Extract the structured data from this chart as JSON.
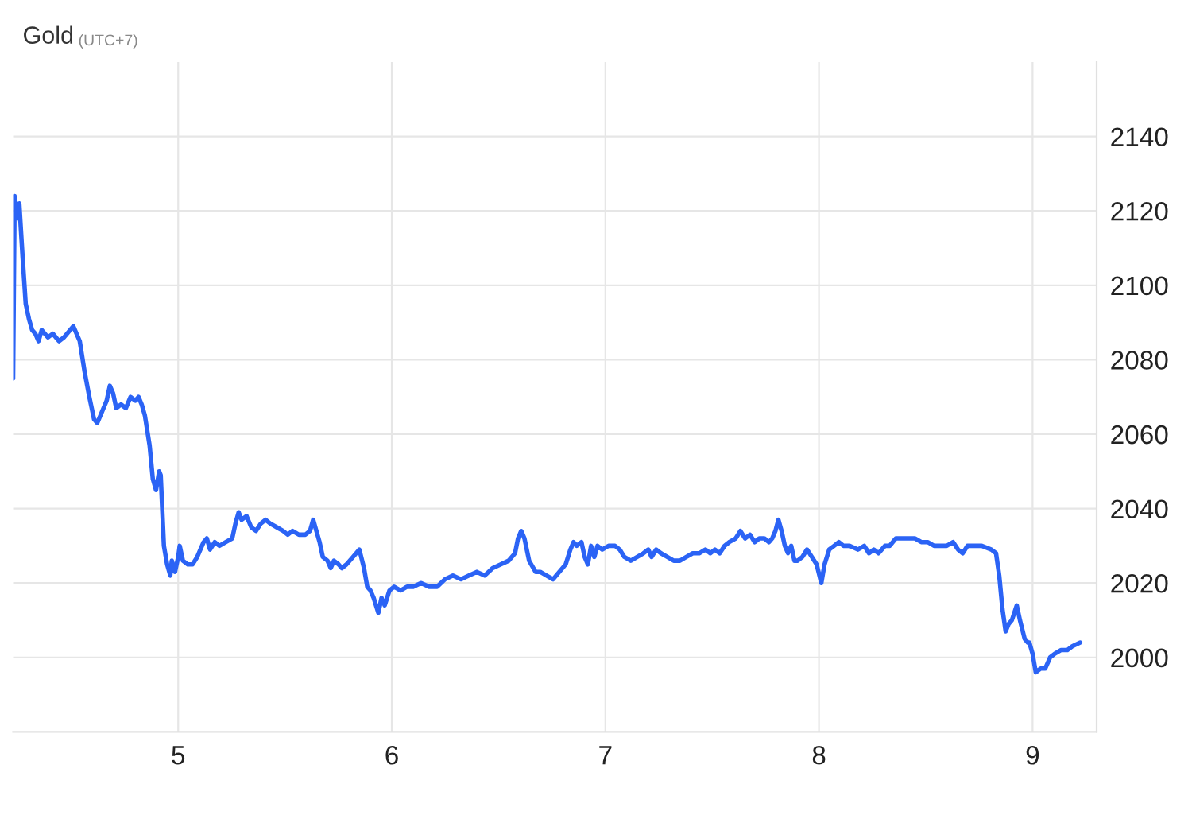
{
  "chart_data": {
    "type": "line",
    "title": "Gold",
    "subtitle": "(UTC+7)",
    "x": [
      4.227,
      4.234,
      4.249,
      4.256,
      4.271,
      4.286,
      4.301,
      4.316,
      4.331,
      4.346,
      4.361,
      4.39,
      4.413,
      4.442,
      4.465,
      4.494,
      4.509,
      4.524,
      4.539,
      4.561,
      4.584,
      4.606,
      4.621,
      4.643,
      4.665,
      4.68,
      4.695,
      4.71,
      4.732,
      4.755,
      4.777,
      4.799,
      4.814,
      4.829,
      4.844,
      4.866,
      4.881,
      4.896,
      4.911,
      4.918,
      4.933,
      4.948,
      4.963,
      4.97,
      4.985,
      5.0,
      5.007,
      5.022,
      5.045,
      5.067,
      5.089,
      5.119,
      5.134,
      5.149,
      5.171,
      5.193,
      5.223,
      5.253,
      5.268,
      5.283,
      5.297,
      5.32,
      5.342,
      5.364,
      5.387,
      5.409,
      5.431,
      5.461,
      5.491,
      5.513,
      5.535,
      5.565,
      5.595,
      5.617,
      5.632,
      5.647,
      5.662,
      5.677,
      5.699,
      5.714,
      5.729,
      5.751,
      5.766,
      5.788,
      5.818,
      5.848,
      5.87,
      5.885,
      5.9,
      5.915,
      5.937,
      5.952,
      5.967,
      5.989,
      6.011,
      6.041,
      6.071,
      6.1,
      6.137,
      6.175,
      6.212,
      6.249,
      6.286,
      6.324,
      6.361,
      6.398,
      6.435,
      6.472,
      6.51,
      6.547,
      6.577,
      6.591,
      6.606,
      6.621,
      6.643,
      6.673,
      6.695,
      6.725,
      6.755,
      6.784,
      6.814,
      6.836,
      6.851,
      6.866,
      6.888,
      6.903,
      6.918,
      6.933,
      6.948,
      6.963,
      6.985,
      7.015,
      7.045,
      7.067,
      7.089,
      7.119,
      7.149,
      7.178,
      7.201,
      7.216,
      7.238,
      7.26,
      7.29,
      7.32,
      7.349,
      7.379,
      7.409,
      7.439,
      7.468,
      7.491,
      7.513,
      7.535,
      7.558,
      7.58,
      7.61,
      7.632,
      7.654,
      7.677,
      7.699,
      7.721,
      7.744,
      7.766,
      7.781,
      7.796,
      7.81,
      7.825,
      7.84,
      7.855,
      7.87,
      7.885,
      7.9,
      7.922,
      7.944,
      7.967,
      7.989,
      8.011,
      8.026,
      8.048,
      8.071,
      8.093,
      8.115,
      8.145,
      8.182,
      8.212,
      8.234,
      8.256,
      8.279,
      8.309,
      8.331,
      8.36,
      8.39,
      8.42,
      8.45,
      8.479,
      8.509,
      8.539,
      8.569,
      8.598,
      8.628,
      8.651,
      8.673,
      8.695,
      8.725,
      8.762,
      8.807,
      8.829,
      8.844,
      8.859,
      8.874,
      8.888,
      8.903,
      8.926,
      8.941,
      8.963,
      8.978,
      8.985,
      9.0,
      9.015,
      9.037,
      9.059,
      9.082,
      9.104,
      9.134,
      9.163,
      9.186,
      9.223
    ],
    "series": [
      {
        "color": "#2b63f5",
        "values": [
          2075,
          2124,
          2118,
          2122,
          2108,
          2095,
          2091,
          2088,
          2087,
          2085,
          2088,
          2086,
          2087,
          2085,
          2086,
          2088,
          2089,
          2087,
          2085,
          2077,
          2070,
          2064,
          2063,
          2066,
          2069,
          2073,
          2071,
          2067,
          2068,
          2067,
          2070,
          2069,
          2070,
          2068,
          2065,
          2057,
          2048,
          2045,
          2050,
          2049,
          2030,
          2025,
          2022,
          2026,
          2023,
          2027,
          2030,
          2026,
          2025,
          2025,
          2027,
          2031,
          2032,
          2029,
          2031,
          2030,
          2031,
          2032,
          2036,
          2039,
          2037,
          2038,
          2035,
          2034,
          2036,
          2037,
          2036,
          2035,
          2034,
          2033,
          2034,
          2033,
          2033,
          2034,
          2037,
          2034,
          2031,
          2027,
          2026,
          2024,
          2026,
          2025,
          2024,
          2025,
          2027,
          2029,
          2024,
          2019,
          2018,
          2016,
          2012,
          2016,
          2014,
          2018,
          2019,
          2018,
          2019,
          2019,
          2020,
          2019,
          2019,
          2021,
          2022,
          2021,
          2022,
          2023,
          2022,
          2024,
          2025,
          2026,
          2028,
          2032,
          2034,
          2032,
          2026,
          2023,
          2023,
          2022,
          2021,
          2023,
          2025,
          2029,
          2031,
          2030,
          2031,
          2027,
          2025,
          2030,
          2027,
          2030,
          2029,
          2030,
          2030,
          2029,
          2027,
          2026,
          2027,
          2028,
          2029,
          2027,
          2029,
          2028,
          2027,
          2026,
          2026,
          2027,
          2028,
          2028,
          2029,
          2028,
          2029,
          2028,
          2030,
          2031,
          2032,
          2034,
          2032,
          2033,
          2031,
          2032,
          2032,
          2031,
          2032,
          2034,
          2037,
          2034,
          2030,
          2028,
          2030,
          2026,
          2026,
          2027,
          2029,
          2027,
          2025,
          2020,
          2025,
          2029,
          2030,
          2031,
          2030,
          2030,
          2029,
          2030,
          2028,
          2029,
          2028,
          2030,
          2030,
          2032,
          2032,
          2032,
          2032,
          2031,
          2031,
          2030,
          2030,
          2030,
          2031,
          2029,
          2028,
          2030,
          2030,
          2030,
          2029,
          2028,
          2022,
          2013,
          2007,
          2009,
          2010,
          2014,
          2010,
          2005,
          2004,
          2004,
          2001,
          1996,
          1997,
          1997,
          2000,
          2001,
          2002,
          2002,
          2003,
          2004
        ]
      }
    ],
    "xlim": [
      4.227,
      9.3
    ],
    "xticks": [
      5,
      6,
      7,
      8,
      9
    ],
    "ylim": [
      1980,
      2160
    ],
    "yticks": [
      2000,
      2020,
      2040,
      2060,
      2080,
      2100,
      2120,
      2140
    ],
    "grid": true
  }
}
